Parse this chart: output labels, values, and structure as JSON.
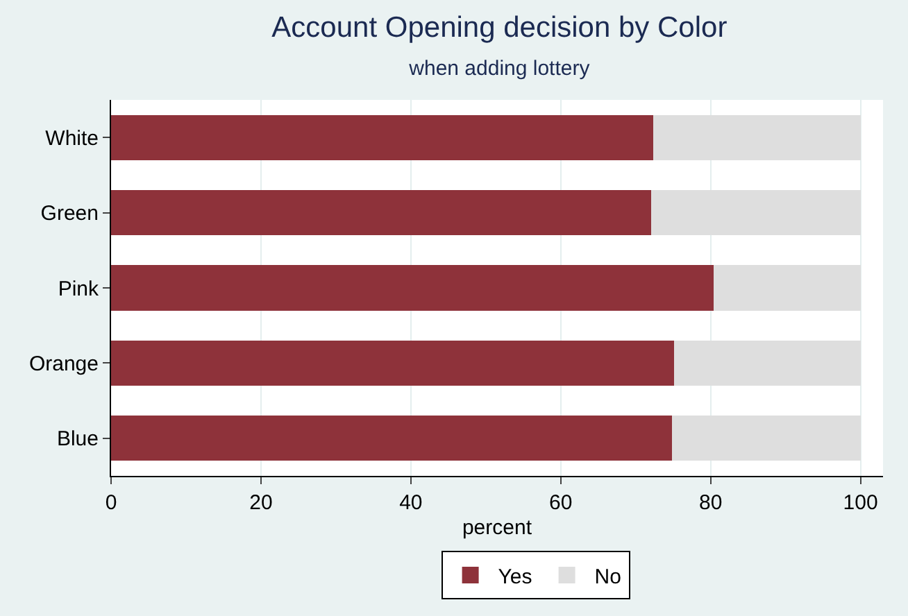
{
  "chart_data": {
    "type": "bar",
    "orientation": "horizontal",
    "stacked": true,
    "title": "Account Opening decision by Color",
    "subtitle": "when adding lottery",
    "xlabel": "percent",
    "categories": [
      "White",
      "Green",
      "Pink",
      "Orange",
      "Blue"
    ],
    "series": [
      {
        "name": "Yes",
        "color": "#8e323a",
        "values": [
          72.3,
          72.1,
          80.4,
          75.1,
          74.8
        ]
      },
      {
        "name": "No",
        "color": "#dedede",
        "values": [
          27.7,
          27.9,
          19.6,
          24.9,
          25.2
        ]
      }
    ],
    "xlim": [
      0,
      103
    ],
    "xticks": [
      0,
      20,
      40,
      60,
      80,
      100
    ],
    "grid": "x",
    "legend": "bottom"
  }
}
